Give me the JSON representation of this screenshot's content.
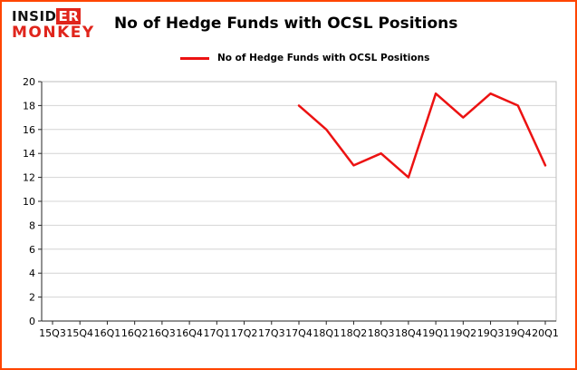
{
  "logo": {
    "part_black": "INSID",
    "part_red": "ER",
    "line2": "MONKEY"
  },
  "colors": {
    "frame_border": "#ff4500",
    "logo_red": "#e0251c",
    "line_red": "#ec1212",
    "gridline": "#d4d4d4",
    "box_spine_light": "#bdbdbd",
    "axis_spine_dark": "#262626"
  },
  "chart_data": {
    "type": "line",
    "title": "No of Hedge Funds with OCSL Positions",
    "xlabel": "",
    "ylabel": "",
    "categories": [
      "15Q3",
      "15Q4",
      "16Q1",
      "16Q2",
      "16Q3",
      "16Q4",
      "17Q1",
      "17Q2",
      "17Q3",
      "17Q4",
      "18Q1",
      "18Q2",
      "18Q3",
      "18Q4",
      "19Q1",
      "19Q2",
      "19Q3",
      "19Q4",
      "20Q1"
    ],
    "series": [
      {
        "name": "No of Hedge Funds with OCSL Positions",
        "color": "#ec1212",
        "values": [
          null,
          null,
          null,
          null,
          null,
          null,
          null,
          null,
          null,
          18,
          16,
          13,
          14,
          12,
          19,
          17,
          19,
          18,
          13
        ]
      }
    ],
    "ylim": [
      0,
      20
    ],
    "ytick_step": 2,
    "grid": "horizontal",
    "legend_position": "top-center"
  }
}
